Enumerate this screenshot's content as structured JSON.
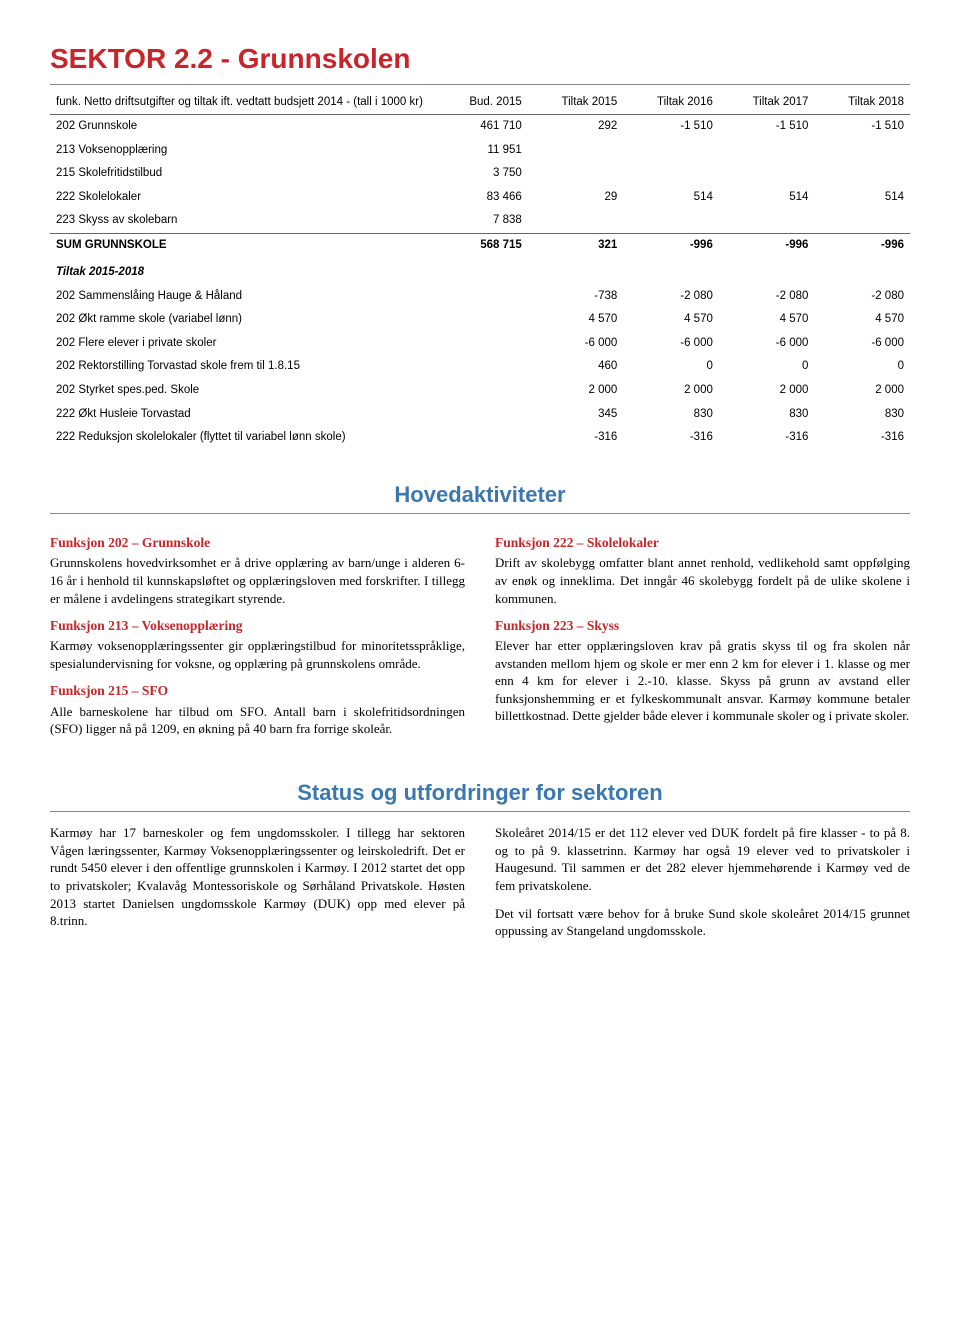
{
  "page": {
    "title": "SEKTOR 2.2 - Grunnskolen",
    "table_header_first": "funk.  Netto driftsutgifter og tiltak ift. vedtatt budsjett 2014 - (tall i 1000 kr)",
    "table_header_cols": [
      "Bud. 2015",
      "Tiltak 2015",
      "Tiltak 2016",
      "Tiltak 2017",
      "Tiltak 2018"
    ],
    "budget_rows": [
      {
        "label": "202 Grunnskole",
        "v": [
          "461 710",
          "292",
          "-1 510",
          "-1 510",
          "-1 510"
        ]
      },
      {
        "label": "213 Voksenopplæring",
        "v": [
          "11 951",
          "",
          "",
          "",
          ""
        ]
      },
      {
        "label": "215 Skolefritidstilbud",
        "v": [
          "3 750",
          "",
          "",
          "",
          ""
        ]
      },
      {
        "label": "222 Skolelokaler",
        "v": [
          "83 466",
          "29",
          "514",
          "514",
          "514"
        ]
      },
      {
        "label": "223 Skyss av skolebarn",
        "v": [
          "7 838",
          "",
          "",
          "",
          ""
        ]
      }
    ],
    "sum_row": {
      "label": "SUM GRUNNSKOLE",
      "v": [
        "568 715",
        "321",
        "-996",
        "-996",
        "-996"
      ]
    },
    "tiltak_head": "Tiltak 2015-2018",
    "tiltak_rows": [
      {
        "label": "202 Sammenslåing Hauge & Håland",
        "v": [
          "",
          "-738",
          "-2 080",
          "-2 080",
          "-2 080"
        ]
      },
      {
        "label": "202 Økt ramme skole (variabel lønn)",
        "v": [
          "",
          "4 570",
          "4 570",
          "4 570",
          "4 570"
        ]
      },
      {
        "label": "202 Flere elever i private skoler",
        "v": [
          "",
          "-6 000",
          "-6 000",
          "-6 000",
          "-6 000"
        ]
      },
      {
        "label": "202 Rektorstilling Torvastad skole frem til 1.8.15",
        "v": [
          "",
          "460",
          "0",
          "0",
          "0"
        ]
      },
      {
        "label": "202 Styrket spes.ped. Skole",
        "v": [
          "",
          "2 000",
          "2 000",
          "2 000",
          "2 000"
        ]
      },
      {
        "label": "222 Økt Husleie Torvastad",
        "v": [
          "",
          "345",
          "830",
          "830",
          "830"
        ]
      },
      {
        "label": "222 Reduksjon skolelokaler (flyttet til variabel lønn skole)",
        "v": [
          "",
          "-316",
          "-316",
          "-316",
          "-316"
        ]
      }
    ],
    "hovedaktiviteter": {
      "title": "Hovedaktiviteter",
      "left": [
        {
          "head": "Funksjon 202 – Grunnskole",
          "body": "Grunnskolens hovedvirksomhet er å drive opplæring av barn/unge i alderen 6-16 år i henhold til kunnskapsløftet og opplæringsloven med forskrifter. I tillegg er målene i avdelingens strategikart styrende."
        },
        {
          "head": "Funksjon 213 – Voksenopplæring",
          "body": "Karmøy voksenopplæringssenter gir opplæringstilbud for minoritetsspråklige, spesialundervisning for voksne, og opplæring på grunnskolens område."
        },
        {
          "head": "Funksjon 215 – SFO",
          "body": "Alle barneskolene har tilbud om SFO. Antall barn i skolefritidsordningen (SFO) ligger nå på 1209, en økning på 40 barn fra forrige skoleår."
        }
      ],
      "right": [
        {
          "head": "Funksjon 222 – Skolelokaler",
          "body": "Drift av skolebygg omfatter blant annet renhold, vedlikehold samt oppfølging av enøk og inneklima. Det inngår 46 skolebygg fordelt på de ulike skolene i kommunen."
        },
        {
          "head": "Funksjon 223 – Skyss",
          "body": "Elever har etter opplæringsloven krav på gratis skyss til og fra skolen når avstanden mellom hjem og skole er mer enn 2 km for elever i 1. klasse og mer enn 4 km for elever i 2.-10. klasse. Skyss på grunn av avstand eller funksjonshemming er et fylkeskommunalt ansvar. Karmøy kommune betaler billettkostnad. Dette gjelder både elever i kommunale skoler og i private skoler."
        }
      ]
    },
    "status": {
      "title": "Status og utfordringer for sektoren",
      "left": [
        "Karmøy har 17 barneskoler og fem ungdoms­skoler. I tillegg har sektoren Vågen læringssenter, Karmøy Voksenopplæringssenter og leirskoledrift. Det er rundt 5450 elever i den offentlige grunnskolen i Karmøy. I 2012 startet det opp to privatskoler; Kvalavåg Montessoriskole og Sørhåland Privatskole. Høsten 2013 startet Danielsen ungdomsskole Karmøy (DUK) opp med elever på 8.trinn."
      ],
      "right": [
        "Skoleåret 2014/15 er det 112 elever ved DUK fordelt på fire klasser - to på 8. og to på 9. klassetrinn. Karmøy har også 19 elever ved to privatskoler i Haugesund. Til sammen er det 282 elever hjemmehørende i Karmøy ved de fem privatskolene.",
        "Det vil fortsatt være behov for å bruke Sund skole skoleåret 2014/15 grunnet oppussing av Stangeland ungdomsskole."
      ]
    }
  }
}
